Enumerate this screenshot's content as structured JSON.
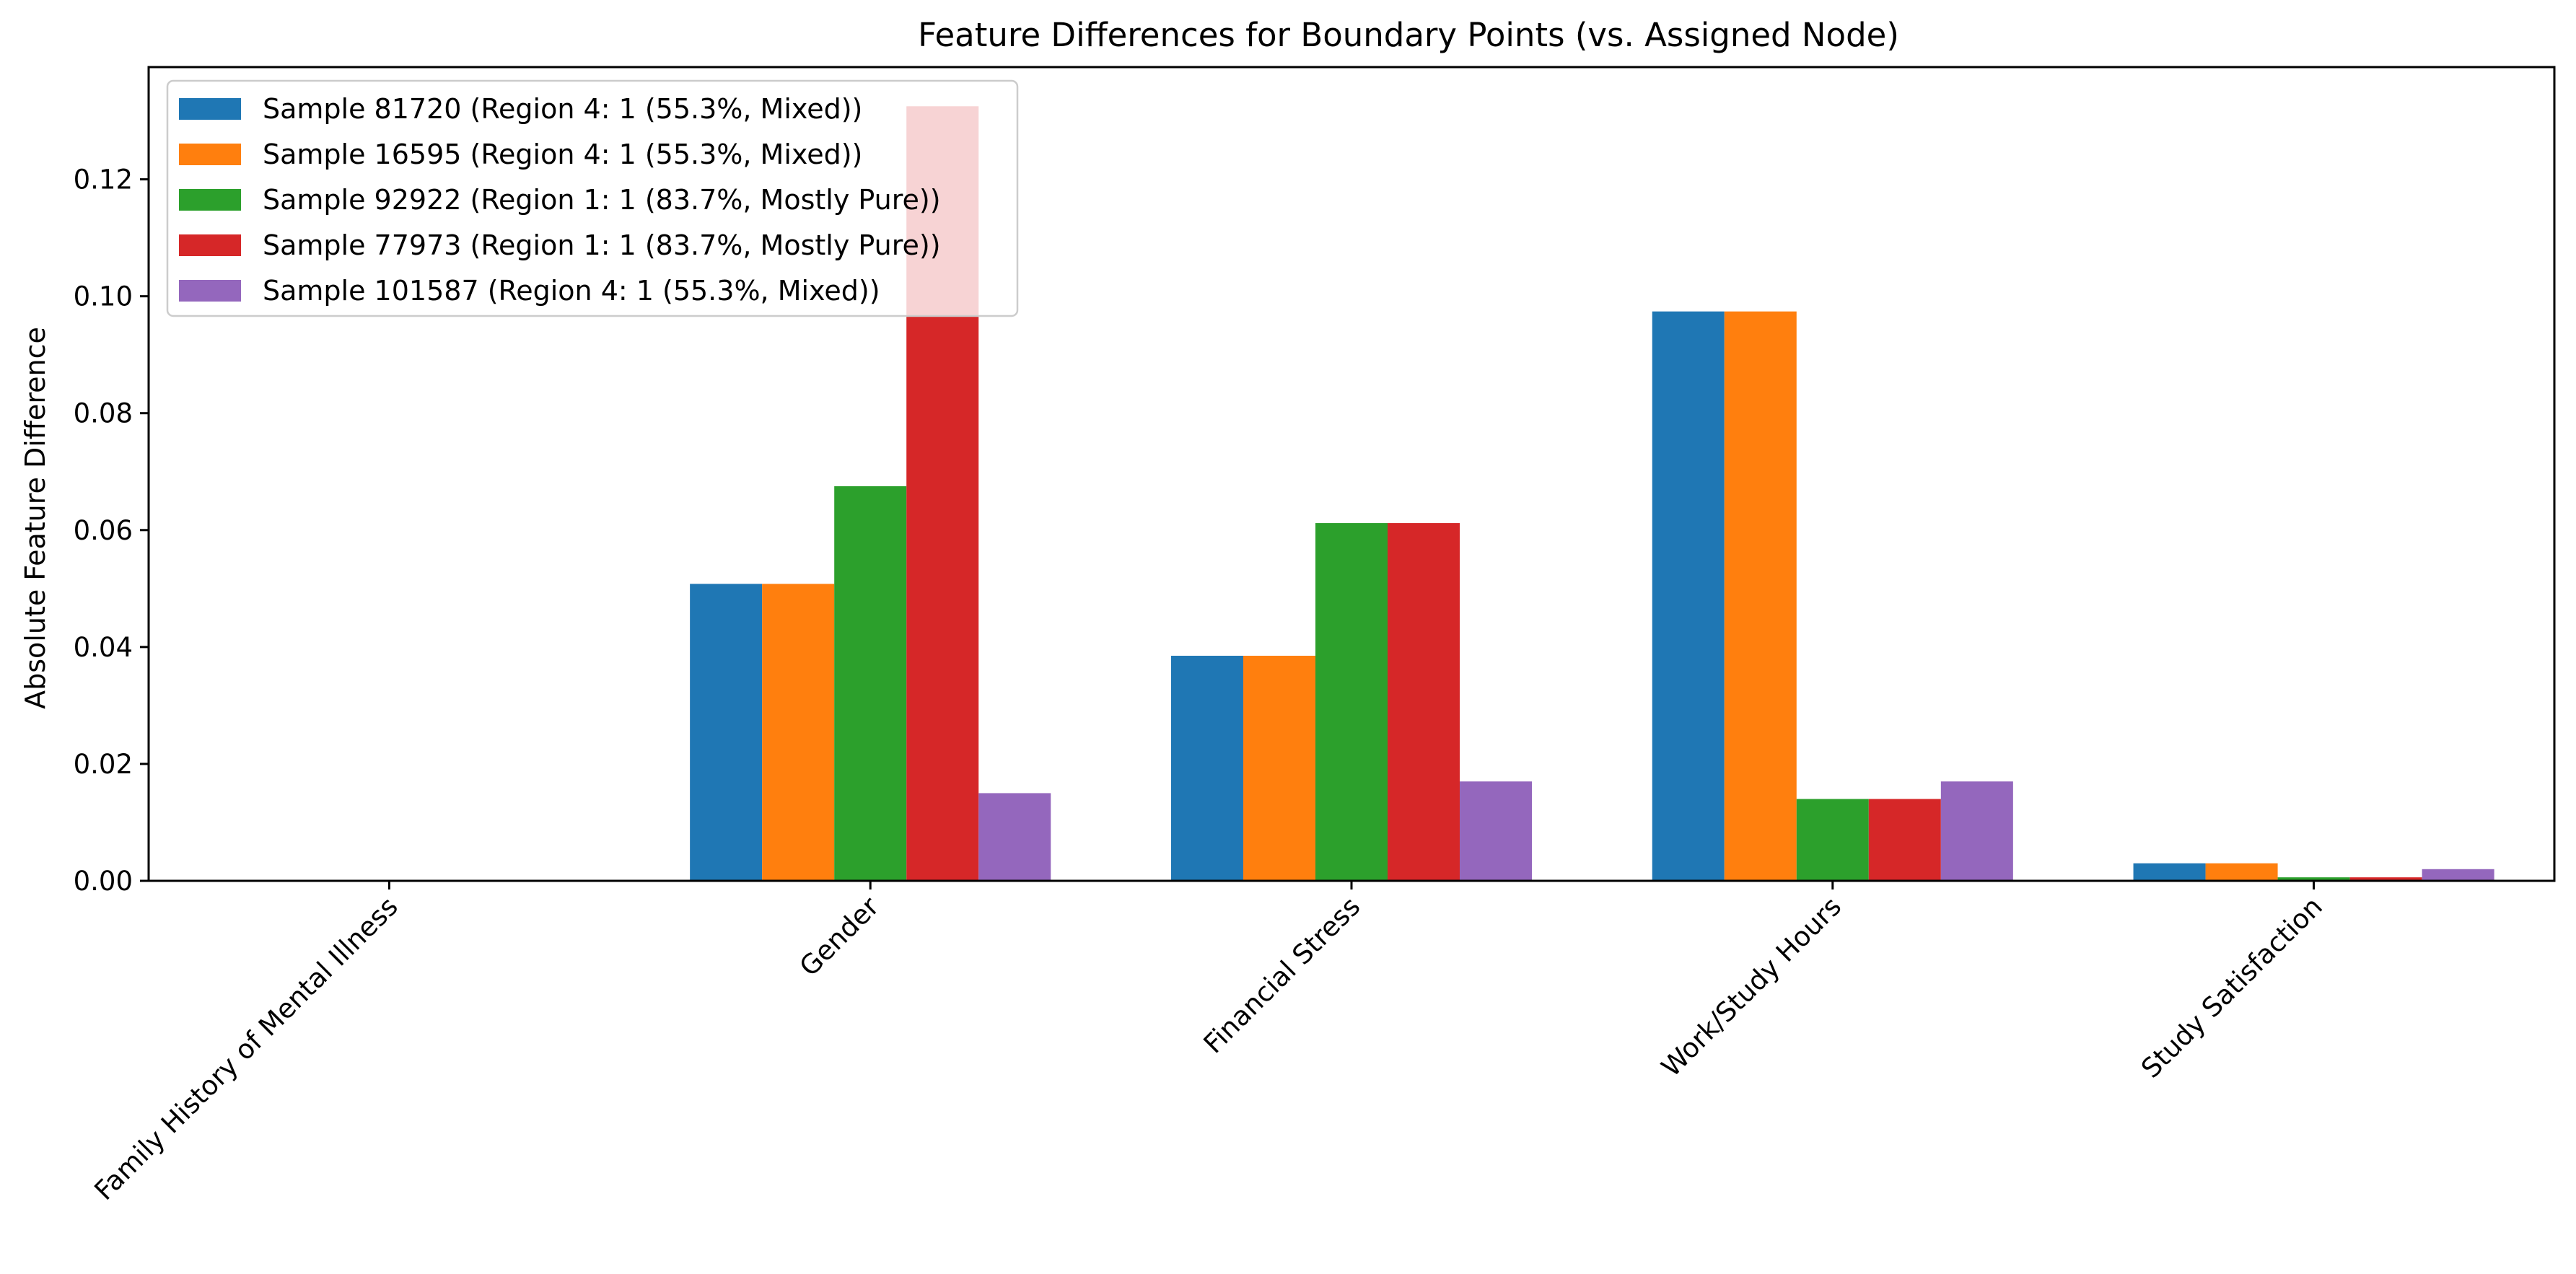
{
  "chart_data": {
    "type": "bar",
    "title": "Feature Differences for Boundary Points (vs. Assigned Node)",
    "xlabel": "",
    "ylabel": "Absolute Feature Difference",
    "categories": [
      "Family History of Mental Illness",
      "Gender",
      "Financial Stress",
      "Work/Study Hours",
      "Study Satisfaction"
    ],
    "series": [
      {
        "name": "Sample 81720 (Region 4: 1 (55.3%, Mixed))",
        "color": "#1f77b4",
        "values": [
          0,
          0.0508,
          0.0385,
          0.0974,
          0.003
        ]
      },
      {
        "name": "Sample 16595 (Region 4: 1 (55.3%, Mixed))",
        "color": "#ff7f0e",
        "values": [
          0,
          0.0508,
          0.0385,
          0.0974,
          0.003
        ]
      },
      {
        "name": "Sample 92922 (Region 1: 1 (83.7%, Mostly Pure))",
        "color": "#2ca02c",
        "values": [
          0,
          0.0675,
          0.0612,
          0.014,
          0.0006
        ]
      },
      {
        "name": "Sample 77973 (Region 1: 1 (83.7%, Mostly Pure))",
        "color": "#d62728",
        "values": [
          0,
          0.1325,
          0.0612,
          0.014,
          0.0006
        ]
      },
      {
        "name": "Sample 101587 (Region 4: 1 (55.3%, Mixed))",
        "color": "#9467bd",
        "values": [
          0,
          0.015,
          0.017,
          0.017,
          0.002
        ]
      }
    ],
    "ylim": [
      0,
      0.1392
    ],
    "yticks": [
      "0.00",
      "0.02",
      "0.04",
      "0.06",
      "0.08",
      "0.10",
      "0.12"
    ],
    "grid": false,
    "legend_position": "top-left"
  }
}
